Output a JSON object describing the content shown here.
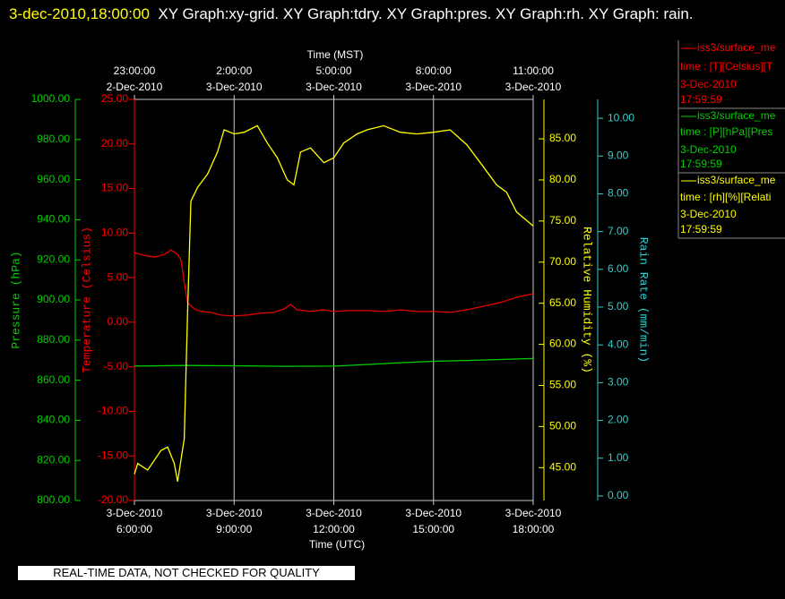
{
  "chart_data": {
    "type": "line",
    "title_date": "3-dec-2010,18:00:00",
    "title": "XY Graph:xy-grid.  XY Graph:tdry.  XY Graph:pres.  XY Graph:rh.  XY Graph: rain.",
    "xlabel": "Time (UTC)",
    "x2label": "Time (MST)",
    "xlim": [
      6,
      18
    ],
    "xticks": [
      {
        "value": 6,
        "label": "6:00:00",
        "date": "3-Dec-2010"
      },
      {
        "value": 9,
        "label": "9:00:00",
        "date": "3-Dec-2010"
      },
      {
        "value": 12,
        "label": "12:00:00",
        "date": "3-Dec-2010"
      },
      {
        "value": 15,
        "label": "15:00:00",
        "date": "3-Dec-2010"
      },
      {
        "value": 18,
        "label": "18:00:00",
        "date": "3-Dec-2010"
      }
    ],
    "x2ticks": [
      {
        "value": 6,
        "label": "23:00:00",
        "date": "2-Dec-2010"
      },
      {
        "value": 9,
        "label": "2:00:00",
        "date": "3-Dec-2010"
      },
      {
        "value": 12,
        "label": "5:00:00",
        "date": "3-Dec-2010"
      },
      {
        "value": 15,
        "label": "8:00:00",
        "date": "3-Dec-2010"
      },
      {
        "value": 18,
        "label": "11:00:00",
        "date": "3-Dec-2010"
      }
    ],
    "grid": true,
    "y_axes": {
      "pressure": {
        "title": "Pressure (hPa)",
        "color": "#00d000",
        "ylim": [
          800,
          1000
        ],
        "yticks": [
          {
            "value": 800,
            "label": "800.00"
          },
          {
            "value": 820,
            "label": "820.00"
          },
          {
            "value": 840,
            "label": "840.00"
          },
          {
            "value": 860,
            "label": "860.00"
          },
          {
            "value": 880,
            "label": "880.00"
          },
          {
            "value": 900,
            "label": "900.00"
          },
          {
            "value": 920,
            "label": "920.00"
          },
          {
            "value": 940,
            "label": "940.00"
          },
          {
            "value": 960,
            "label": "960.00"
          },
          {
            "value": 980,
            "label": "980.00"
          },
          {
            "value": 1000,
            "label": "1000.00"
          }
        ]
      },
      "temperature": {
        "title": "Temperature (Celsius)",
        "color": "#ff0000",
        "ylim": [
          -20,
          25
        ],
        "yticks": [
          {
            "value": -20,
            "label": "-20.00"
          },
          {
            "value": -15,
            "label": "-15.00"
          },
          {
            "value": -10,
            "label": "-10.00"
          },
          {
            "value": -5,
            "label": "-5.00"
          },
          {
            "value": 0,
            "label": "0.00"
          },
          {
            "value": 5,
            "label": "5.00"
          },
          {
            "value": 10,
            "label": "10.00"
          },
          {
            "value": 15,
            "label": "15.00"
          },
          {
            "value": 20,
            "label": "20.00"
          },
          {
            "value": 25,
            "label": "25.00"
          }
        ]
      },
      "rh": {
        "title": "Relative Humidity (%)",
        "color": "#ffff00",
        "ylim": [
          41,
          89.8
        ],
        "yticks": [
          {
            "value": 45,
            "label": "45.00"
          },
          {
            "value": 50,
            "label": "50.00"
          },
          {
            "value": 55,
            "label": "55.00"
          },
          {
            "value": 60,
            "label": "60.00"
          },
          {
            "value": 65,
            "label": "65.00"
          },
          {
            "value": 70,
            "label": "70.00"
          },
          {
            "value": 75,
            "label": "75.00"
          },
          {
            "value": 80,
            "label": "80.00"
          },
          {
            "value": 85,
            "label": "85.00"
          }
        ]
      },
      "rain": {
        "title": "Rain Rate (mm/min)",
        "color": "#30d0d0",
        "ylim": [
          -0.12,
          10.5
        ],
        "yticks": [
          {
            "value": 0,
            "label": "0.00"
          },
          {
            "value": 1,
            "label": "1.00"
          },
          {
            "value": 2,
            "label": "2.00"
          },
          {
            "value": 3,
            "label": "3.00"
          },
          {
            "value": 4,
            "label": "4.00"
          },
          {
            "value": 5,
            "label": "5.00"
          },
          {
            "value": 6,
            "label": "6.00"
          },
          {
            "value": 7,
            "label": "7.00"
          },
          {
            "value": 8,
            "label": "8.00"
          },
          {
            "value": 9,
            "label": "9.00"
          },
          {
            "value": 10,
            "label": "10.00"
          }
        ]
      }
    },
    "series": [
      {
        "axis": "temperature",
        "color": "#e80000",
        "x": [
          6.0,
          6.3,
          6.6,
          6.9,
          7.1,
          7.3,
          7.4,
          7.5,
          7.6,
          7.8,
          8.0,
          8.3,
          8.6,
          9.0,
          9.4,
          9.8,
          10.2,
          10.5,
          10.7,
          10.9,
          11.3,
          11.7,
          12.0,
          12.5,
          13.0,
          13.5,
          14.0,
          14.5,
          15.0,
          15.5,
          16.0,
          16.5,
          17.0,
          17.5,
          18.0
        ],
        "values": [
          7.8,
          7.5,
          7.3,
          7.6,
          8.1,
          7.6,
          7.0,
          4.5,
          2.2,
          1.5,
          1.2,
          1.1,
          0.8,
          0.7,
          0.8,
          1.0,
          1.1,
          1.5,
          2.0,
          1.4,
          1.2,
          1.4,
          1.2,
          1.3,
          1.3,
          1.2,
          1.4,
          1.2,
          1.2,
          1.1,
          1.4,
          1.8,
          2.2,
          2.8,
          3.2
        ]
      },
      {
        "axis": "pressure",
        "color": "#00d000",
        "x": [
          6.0,
          7.5,
          9.0,
          10.5,
          12.0,
          13.0,
          14.0,
          15.0,
          16.0,
          17.0,
          18.0
        ],
        "values": [
          867.0,
          867.3,
          867.2,
          866.9,
          867.0,
          867.8,
          868.7,
          869.4,
          869.8,
          870.3,
          870.8
        ]
      },
      {
        "axis": "rh",
        "color": "#ffff00",
        "x": [
          6.0,
          6.1,
          6.4,
          6.8,
          7.0,
          7.2,
          7.3,
          7.5,
          7.6,
          7.7,
          7.9,
          8.2,
          8.5,
          8.7,
          9.0,
          9.3,
          9.7,
          10.0,
          10.3,
          10.6,
          10.8,
          11.0,
          11.3,
          11.7,
          12.0,
          12.3,
          12.7,
          13.0,
          13.5,
          14.0,
          14.5,
          15.0,
          15.5,
          16.0,
          16.5,
          16.9,
          17.2,
          17.5,
          18.0
        ],
        "values": [
          44.2,
          45.5,
          44.7,
          47.1,
          47.5,
          45.5,
          43.3,
          48.5,
          63.8,
          77.4,
          79.1,
          80.7,
          83.4,
          86.1,
          85.6,
          85.8,
          86.6,
          84.5,
          82.7,
          80.0,
          79.4,
          83.4,
          83.9,
          82.1,
          82.7,
          84.5,
          85.6,
          86.1,
          86.6,
          85.8,
          85.6,
          85.8,
          86.1,
          84.3,
          81.6,
          79.4,
          78.5,
          76.1,
          74.4
        ]
      }
    ],
    "legend": [
      {
        "color": "#ff0000",
        "lines": [
          "iss3/surface_me",
          "time : [T][Celsius][T",
          "3-Dec-2010",
          "17:59:59"
        ]
      },
      {
        "color": "#00d000",
        "lines": [
          "iss3/surface_me",
          "time : [P][hPa][Pres",
          "3-Dec-2010",
          "17:59:59"
        ]
      },
      {
        "color": "#ffff00",
        "lines": [
          "iss3/surface_me",
          "time : [rh][%][Relati",
          "3-Dec-2010",
          "17:59:59"
        ]
      }
    ],
    "footer": "REAL-TIME DATA, NOT CHECKED FOR QUALITY"
  }
}
